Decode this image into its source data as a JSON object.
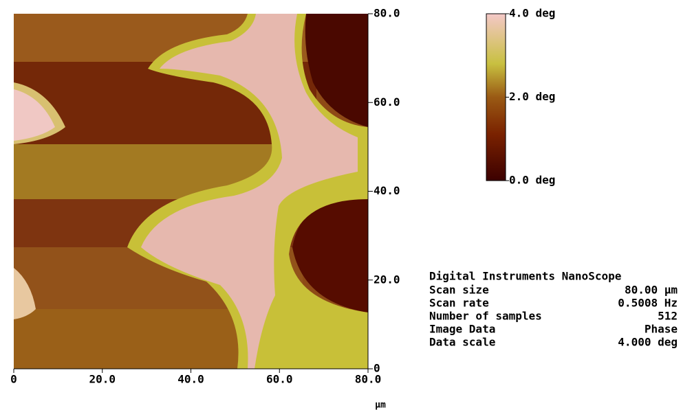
{
  "chart_data": {
    "type": "image",
    "xlabel": "μm",
    "xlim": [
      0,
      80
    ],
    "xticks": [
      0,
      {
        "value": 20,
        "label": "20.0"
      },
      {
        "value": 40,
        "label": "40.0"
      },
      {
        "value": 60,
        "label": "60.0"
      },
      {
        "value": 80,
        "label": "80.0"
      }
    ],
    "ylim": [
      0,
      80
    ],
    "yticks": [
      0,
      {
        "value": 20,
        "label": "20.0"
      },
      {
        "value": 40,
        "label": "40.0"
      },
      {
        "value": 60,
        "label": "60.0"
      },
      {
        "value": 80,
        "label": "80.0"
      }
    ],
    "colorbar": {
      "zlim": [
        0,
        4
      ],
      "zticks": [
        {
          "value": 0,
          "label": "0.0 deg"
        },
        {
          "value": 2,
          "label": "2.0 deg"
        },
        {
          "value": 4,
          "label": "4.0 deg"
        }
      ]
    },
    "info": {
      "title": "Digital Instruments NanoScope",
      "rows": [
        [
          "Scan size",
          "80.00 μm"
        ],
        [
          "Scan rate",
          "0.5008 Hz"
        ],
        [
          "Number of samples",
          "512"
        ],
        [
          "Image Data",
          "Phase"
        ],
        [
          "Data scale",
          "4.000 deg"
        ]
      ]
    }
  }
}
